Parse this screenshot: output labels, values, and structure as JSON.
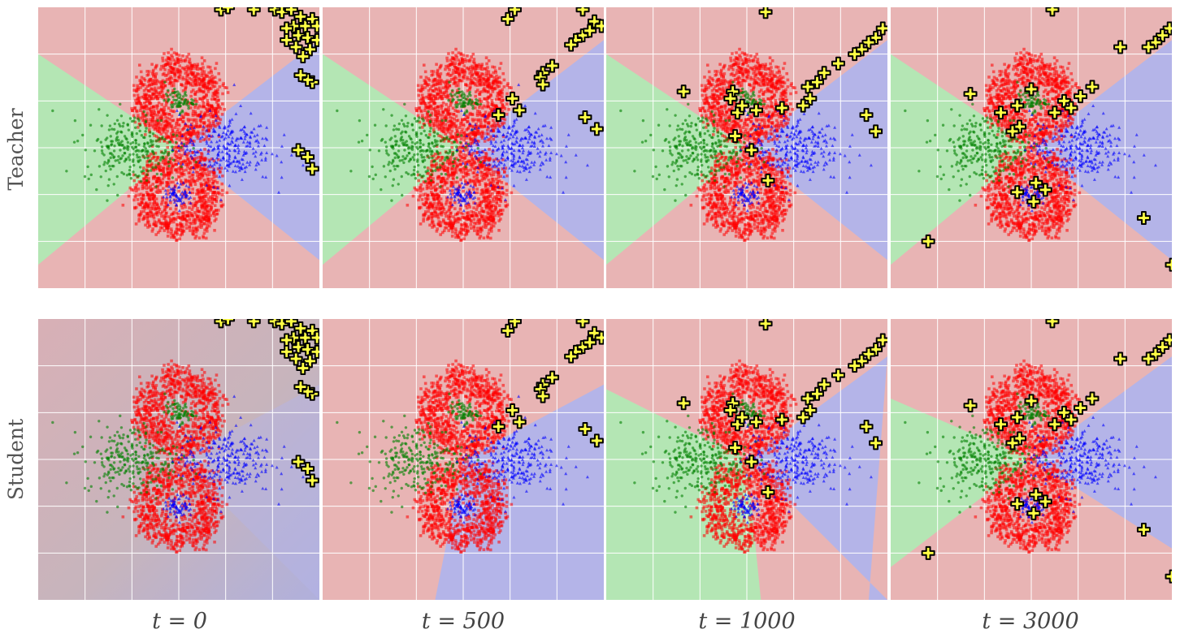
{
  "chart_data": {
    "type": "scatter",
    "rows": [
      "Teacher",
      "Student"
    ],
    "columns": [
      "t = 0",
      "t = 500",
      "t = 1000",
      "t = 3000"
    ],
    "xlim": [
      -3,
      3
    ],
    "ylim": [
      -3,
      3
    ],
    "grid": true,
    "classes": [
      {
        "name": "red",
        "color": "#ff0000",
        "marker": "square",
        "clusters": [
          {
            "center": [
              0,
              1
            ],
            "ring_radius": 0.9
          },
          {
            "center": [
              0,
              -1
            ],
            "ring_radius": 0.9
          }
        ]
      },
      {
        "name": "green",
        "color": "#008000",
        "marker": "circle",
        "clusters": [
          {
            "center": [
              -1,
              0
            ],
            "spread": 0.5
          },
          {
            "center": [
              0,
              1
            ],
            "spread": 0.15
          }
        ]
      },
      {
        "name": "blue",
        "color": "#0000ff",
        "marker": "triangle",
        "clusters": [
          {
            "center": [
              1,
              0
            ],
            "spread": 0.5
          },
          {
            "center": [
              0,
              -1
            ],
            "spread": 0.15
          }
        ]
      }
    ],
    "region_colors": {
      "red": "#e8b4b4",
      "green": "#b4e6b4",
      "blue": "#b4b4e8"
    },
    "student_t0_blend": "#c7b4bc",
    "inducing_points": {
      "marker": "plus",
      "fill": "#ffff44",
      "edge": "#000000",
      "sets": [
        [
          [
            0.9,
            2.95
          ],
          [
            1.05,
            3.0
          ],
          [
            1.6,
            2.95
          ],
          [
            2.05,
            2.95
          ],
          [
            2.2,
            2.9
          ],
          [
            2.4,
            2.95
          ],
          [
            2.6,
            2.8
          ],
          [
            2.45,
            2.6
          ],
          [
            2.7,
            2.6
          ],
          [
            2.85,
            2.75
          ],
          [
            2.95,
            2.6
          ],
          [
            2.55,
            2.4
          ],
          [
            2.3,
            2.55
          ],
          [
            2.75,
            2.35
          ],
          [
            2.95,
            2.3
          ],
          [
            2.5,
            2.15
          ],
          [
            2.8,
            2.1
          ],
          [
            2.3,
            2.3
          ],
          [
            2.65,
            1.95
          ],
          [
            2.85,
            1.4
          ],
          [
            2.75,
            1.45
          ],
          [
            2.75,
            -0.2
          ],
          [
            2.85,
            -0.45
          ],
          [
            2.55,
            -0.05
          ],
          [
            2.6,
            1.55
          ]
        ],
        [
          [
            0.95,
            2.75
          ],
          [
            1.1,
            2.95
          ],
          [
            2.55,
            2.95
          ],
          [
            2.8,
            2.7
          ],
          [
            2.95,
            2.6
          ],
          [
            2.55,
            2.4
          ],
          [
            2.4,
            2.3
          ],
          [
            2.3,
            2.2
          ],
          [
            2.7,
            2.5
          ],
          [
            1.9,
            1.75
          ],
          [
            1.7,
            1.6
          ],
          [
            1.65,
            1.5
          ],
          [
            1.7,
            1.35
          ],
          [
            1.05,
            1.05
          ],
          [
            1.2,
            0.8
          ],
          [
            0.75,
            0.7
          ],
          [
            2.6,
            0.65
          ],
          [
            2.85,
            0.4
          ]
        ],
        [
          [
            0.4,
            2.9
          ],
          [
            2.9,
            2.55
          ],
          [
            2.75,
            2.35
          ],
          [
            2.6,
            2.25
          ],
          [
            2.45,
            2.1
          ],
          [
            2.3,
            2.0
          ],
          [
            1.95,
            1.8
          ],
          [
            1.65,
            1.6
          ],
          [
            1.5,
            1.4
          ],
          [
            1.3,
            1.3
          ],
          [
            1.35,
            1.05
          ],
          [
            1.2,
            0.9
          ],
          [
            0.75,
            0.85
          ],
          [
            -1.35,
            1.2
          ],
          [
            -0.3,
            1.2
          ],
          [
            -0.35,
            1.05
          ],
          [
            -0.2,
            0.75
          ],
          [
            0.2,
            0.8
          ],
          [
            -0.25,
            0.25
          ],
          [
            0.1,
            -0.05
          ],
          [
            0.45,
            -0.7
          ],
          [
            2.55,
            0.7
          ],
          [
            2.75,
            0.35
          ],
          [
            -0.1,
            0.9
          ]
        ],
        [
          [
            0.45,
            2.95
          ],
          [
            2.95,
            2.55
          ],
          [
            2.8,
            2.4
          ],
          [
            2.65,
            2.25
          ],
          [
            2.5,
            2.15
          ],
          [
            1.9,
            2.15
          ],
          [
            -1.3,
            1.15
          ],
          [
            0.0,
            1.25
          ],
          [
            -0.3,
            0.9
          ],
          [
            0.7,
            1.0
          ],
          [
            0.85,
            0.85
          ],
          [
            1.05,
            1.1
          ],
          [
            1.3,
            1.3
          ],
          [
            -0.65,
            0.75
          ],
          [
            0.5,
            0.75
          ],
          [
            -0.25,
            0.45
          ],
          [
            -0.4,
            0.35
          ],
          [
            -0.3,
            -0.95
          ],
          [
            0.3,
            -0.9
          ],
          [
            0.05,
            -1.15
          ],
          [
            0.1,
            -0.75
          ],
          [
            2.4,
            -1.5
          ],
          [
            -2.2,
            -2.0
          ],
          [
            3.0,
            -2.5
          ]
        ]
      ]
    }
  }
}
